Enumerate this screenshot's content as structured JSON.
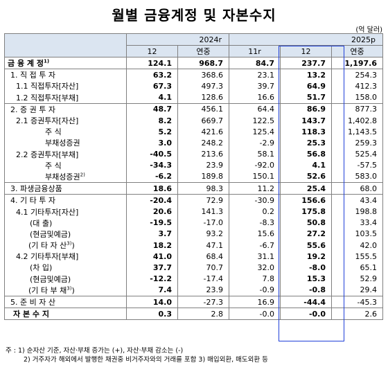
{
  "title": "월별 금융계정 및 자본수지",
  "unit": "(억 달러)",
  "header": {
    "year1": "2024r",
    "year2": "2025p",
    "cols": [
      "12",
      "연중",
      "11r",
      "12",
      "연중"
    ]
  },
  "rows": [
    {
      "label": "금 융 계 정",
      "sup": "1)",
      "vals": [
        "124.1",
        "968.7",
        "84.7",
        "237.7",
        "1,197.6"
      ]
    },
    {
      "label": "1. 직 접 투 자",
      "vals": [
        "63.2",
        "368.6",
        "23.1",
        "13.2",
        "254.3"
      ]
    },
    {
      "label": "1.1 직접투자[자산]",
      "vals": [
        "67.3",
        "497.3",
        "39.7",
        "64.9",
        "412.3"
      ]
    },
    {
      "label": "1.2 직접투자[부채]",
      "vals": [
        "4.1",
        "128.6",
        "16.6",
        "51.7",
        "158.0"
      ]
    },
    {
      "label": "2. 증 권 투 자",
      "vals": [
        "48.7",
        "456.1",
        "64.4",
        "86.9",
        "877.3"
      ]
    },
    {
      "label": "2.1 증권투자[자산]",
      "vals": [
        "8.2",
        "669.7",
        "122.5",
        "143.7",
        "1,402.8"
      ]
    },
    {
      "label": "주 식",
      "vals": [
        "5.2",
        "421.6",
        "125.4",
        "118.3",
        "1,143.5"
      ]
    },
    {
      "label": "부채성증권",
      "vals": [
        "3.0",
        "248.2",
        "-2.9",
        "25.3",
        "259.3"
      ]
    },
    {
      "label": "2.2 증권투자[부채]",
      "vals": [
        "-40.5",
        "213.6",
        "58.1",
        "56.8",
        "525.4"
      ]
    },
    {
      "label": "주 식",
      "vals": [
        "-34.3",
        "23.9",
        "-92.0",
        "4.1",
        "-57.5"
      ]
    },
    {
      "label": "부채성증권",
      "sup": "2)",
      "vals": [
        "-6.2",
        "189.8",
        "150.1",
        "52.6",
        "583.0"
      ]
    },
    {
      "label": "3. 파생금융상품",
      "vals": [
        "18.6",
        "98.3",
        "11.2",
        "25.4",
        "68.0"
      ]
    },
    {
      "label": "4. 기 타 투 자",
      "vals": [
        "-20.4",
        "72.9",
        "-30.9",
        "156.6",
        "43.4"
      ]
    },
    {
      "label": "4.1 기타투자[자산]",
      "vals": [
        "20.6",
        "141.3",
        "0.2",
        "175.8",
        "198.8"
      ]
    },
    {
      "label": "(대 출)",
      "vals": [
        "-19.5",
        "-17.0",
        "-8.3",
        "50.8",
        "33.4"
      ]
    },
    {
      "label": "(현금및예금)",
      "vals": [
        "3.7",
        "93.2",
        "15.6",
        "27.2",
        "103.5"
      ]
    },
    {
      "label": "(기 타 자 산",
      "sup": "3)",
      "label_end": ")",
      "vals": [
        "18.2",
        "47.1",
        "-6.7",
        "55.6",
        "42.0"
      ]
    },
    {
      "label": "4.2 기타투자[부채]",
      "vals": [
        "41.0",
        "68.4",
        "31.1",
        "19.2",
        "155.5"
      ]
    },
    {
      "label": "(차 입)",
      "vals": [
        "37.7",
        "70.7",
        "32.0",
        "-8.0",
        "65.1"
      ]
    },
    {
      "label": "(현금및예금)",
      "vals": [
        "-12.2",
        "-17.4",
        "7.8",
        "15.3",
        "52.9"
      ]
    },
    {
      "label": "(기 타 부 채",
      "sup": "3)",
      "label_end": ")",
      "vals": [
        "7.4",
        "23.9",
        "-0.9",
        "-0.8",
        "29.4"
      ]
    },
    {
      "label": "5. 준 비 자 산",
      "vals": [
        "14.0",
        "-27.3",
        "16.9",
        "-44.4",
        "-45.3"
      ]
    },
    {
      "label": "자 본 수 지",
      "vals": [
        "0.3",
        "2.8",
        "-0.0",
        "-0.0",
        "2.6"
      ]
    }
  ],
  "notes": [
    "주 : 1) 순자산 기준, 자산·부채 증가는 (+), 자산·부채 감소는 (-)",
    "2) 거주자가 해외에서 발행한 채권중 비거주자와의 거래를 포함   3) 매입외환, 매도외환 등"
  ]
}
